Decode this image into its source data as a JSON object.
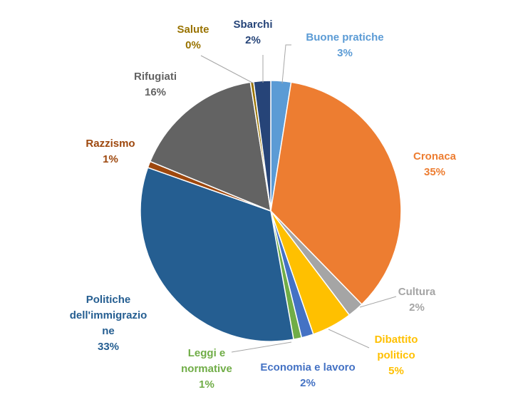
{
  "chart_data": {
    "type": "pie",
    "title": "",
    "slices": [
      {
        "name": "Buone pratiche",
        "value": 2.5,
        "pct_label": "3%",
        "color": "#5B9BD5"
      },
      {
        "name": "Cronaca",
        "value": 35.2,
        "pct_label": "35%",
        "color": "#ED7D31"
      },
      {
        "name": "Cultura",
        "value": 2.0,
        "pct_label": "2%",
        "color": "#A5A5A5"
      },
      {
        "name": "Dibattito politico",
        "value": 5.0,
        "pct_label": "5%",
        "color": "#FFC000"
      },
      {
        "name": "Economia e lavoro",
        "value": 1.5,
        "pct_label": "2%",
        "color": "#4472C4"
      },
      {
        "name": "Leggi e normative",
        "value": 1.0,
        "pct_label": "1%",
        "color": "#70AD47"
      },
      {
        "name": "Politiche dell'immigrazione",
        "value": 33.2,
        "pct_label": "33%",
        "color": "#255E91"
      },
      {
        "name": "Razzismo",
        "value": 0.8,
        "pct_label": "1%",
        "color": "#9E480E"
      },
      {
        "name": "Rifugiati",
        "value": 16.3,
        "pct_label": "16%",
        "color": "#636363"
      },
      {
        "name": "Salute",
        "value": 0.4,
        "pct_label": "0%",
        "color": "#997300"
      },
      {
        "name": "Sbarchi",
        "value": 2.1,
        "pct_label": "2%",
        "color": "#264478"
      }
    ],
    "labels": [
      {
        "lines": [
          "Buone pratiche",
          "3%"
        ]
      },
      {
        "lines": [
          "Cronaca",
          "35%"
        ]
      },
      {
        "lines": [
          "Cultura",
          "2%"
        ]
      },
      {
        "lines": [
          "Dibattito",
          "politico",
          "5%"
        ]
      },
      {
        "lines": [
          "Economia e lavoro",
          "2%"
        ]
      },
      {
        "lines": [
          "Leggi e",
          "normative",
          "1%"
        ]
      },
      {
        "lines": [
          "Politiche",
          "dell'immigrazio",
          "ne",
          "33%"
        ]
      },
      {
        "lines": [
          "Razzismo",
          "1%"
        ]
      },
      {
        "lines": [
          "Rifugiati",
          "16%"
        ]
      },
      {
        "lines": [
          "Salute",
          "0%"
        ]
      },
      {
        "lines": [
          "Sbarchi",
          "2%"
        ]
      }
    ]
  }
}
